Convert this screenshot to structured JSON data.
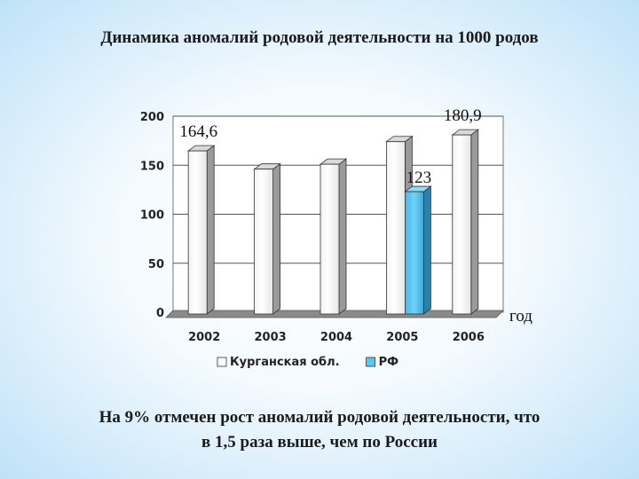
{
  "slide": {
    "title": "Динамика аномалий родовой деятельности на 1000 родов",
    "caption_line1": "На 9% отмечен рост аномалий родовой деятельности, что",
    "caption_line2": "в 1,5 раза выше, чем по России"
  },
  "chart_data": {
    "type": "bar",
    "title": "",
    "xlabel": "год",
    "ylabel": "",
    "categories": [
      "2002",
      "2003",
      "2004",
      "2005",
      "2006"
    ],
    "ylim": [
      0,
      200
    ],
    "yticks": [
      0,
      50,
      100,
      150,
      200
    ],
    "grid": true,
    "legend_position": "bottom",
    "series": [
      {
        "name": "Курганская обл.",
        "color": "#ffffff",
        "values": [
          164.6,
          146,
          151,
          174,
          180.9
        ],
        "labels": [
          "164,6",
          "",
          "",
          "",
          "180,9"
        ]
      },
      {
        "name": "РФ",
        "color": "#5bc8f0",
        "values": [
          null,
          null,
          null,
          123,
          null
        ],
        "labels": [
          "",
          "",
          "",
          "123",
          ""
        ]
      }
    ]
  }
}
